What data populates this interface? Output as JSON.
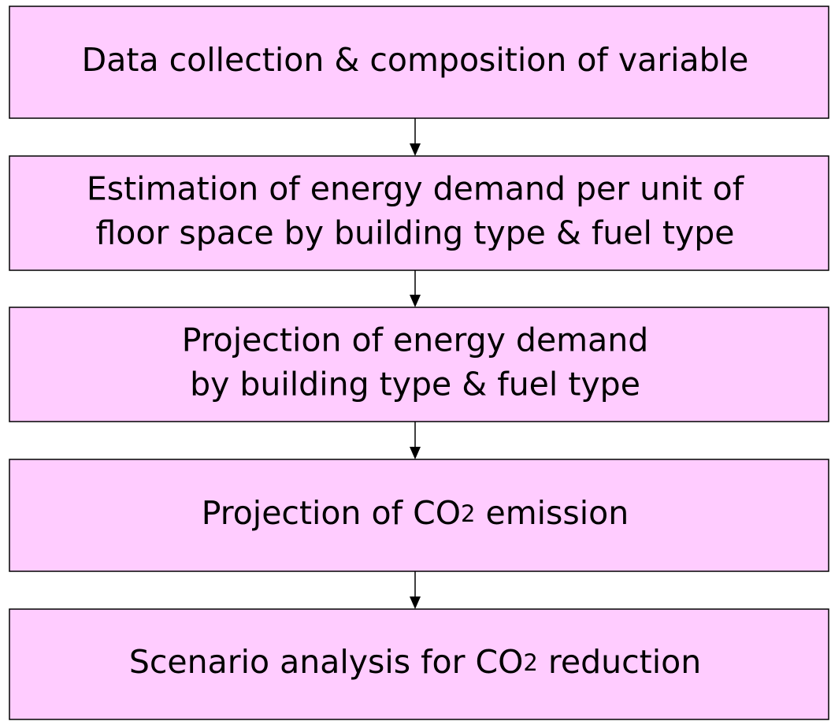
{
  "nodes": [
    {
      "lines": [
        [
          {
            "text": "Data collection & composition of variable"
          }
        ]
      ]
    },
    {
      "lines": [
        [
          {
            "text": "Estimation of energy demand per unit of"
          }
        ],
        [
          {
            "text": "floor space by building type & fuel type"
          }
        ]
      ]
    },
    {
      "lines": [
        [
          {
            "text": "Projection of energy demand"
          }
        ],
        [
          {
            "text": "by building type & fuel type"
          }
        ]
      ]
    },
    {
      "lines": [
        [
          {
            "text": "Projection of CO"
          },
          {
            "text": "2",
            "small": true
          },
          {
            "text": " emission"
          }
        ]
      ]
    },
    {
      "lines": [
        [
          {
            "text": "Scenario analysis for CO"
          },
          {
            "text": "2",
            "small": true
          },
          {
            "text": " reduction"
          }
        ]
      ]
    }
  ]
}
